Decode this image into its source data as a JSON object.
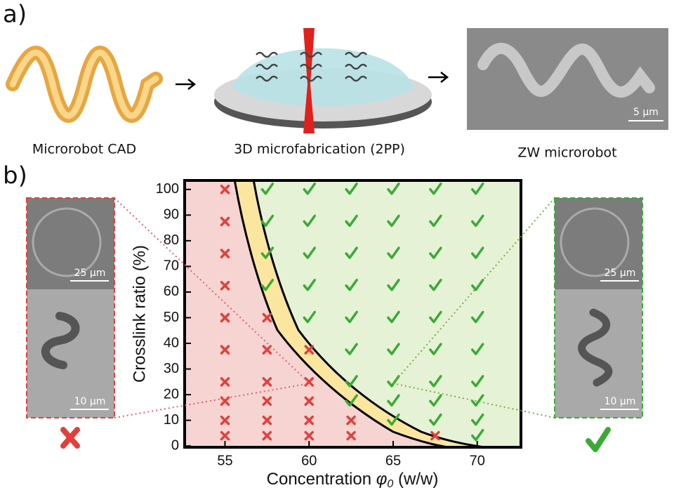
{
  "panel_labels": [
    "a)",
    "b)"
  ],
  "panel_a": {
    "captions": [
      "Microrobot CAD",
      "3D microfabrication (2PP)",
      "ZW microrobot"
    ],
    "scale_bar": "5 µm"
  },
  "insets": {
    "left": {
      "top_scale": "25 µm",
      "bottom_scale": "10 µm"
    },
    "right": {
      "top_scale": "25 µm",
      "bottom_scale": "10 µm"
    }
  },
  "chart_data": {
    "type": "scatter",
    "x_label": {
      "text": "Concentration",
      "symbol": "φ",
      "subscript": "0",
      "unit": "(w/w)"
    },
    "y_label": "Crosslink ratio (%)",
    "xlim": [
      52.6,
      72.6
    ],
    "ylim": [
      -0.5,
      103.5
    ],
    "xticks": [
      55,
      60,
      65,
      70
    ],
    "yticks": [
      0,
      10,
      20,
      30,
      40,
      50,
      60,
      70,
      80,
      90,
      100
    ],
    "series": [
      {
        "marker": "cross",
        "color": "#e0403c",
        "x": [
          55,
          55,
          55,
          55,
          55,
          55,
          55,
          55,
          55,
          55,
          57.5,
          57.5,
          57.5,
          57.5,
          57.5,
          57.5,
          60,
          60,
          60,
          60,
          60,
          62.5,
          62.5,
          67.5
        ],
        "values": [
          100,
          87.5,
          75,
          62.5,
          50,
          37.5,
          25,
          17.5,
          10,
          4,
          50,
          37.5,
          25,
          17.5,
          10,
          4,
          37.5,
          25,
          17.5,
          10,
          4,
          10,
          4,
          4
        ]
      },
      {
        "marker": "check",
        "color": "#3aaa35",
        "x": [
          57.5,
          57.5,
          57.5,
          57.5,
          60,
          60,
          60,
          60,
          60,
          62.5,
          62.5,
          62.5,
          62.5,
          62.5,
          62.5,
          62.5,
          62.5,
          65,
          65,
          65,
          65,
          65,
          65,
          65,
          65,
          65,
          67.5,
          67.5,
          67.5,
          67.5,
          67.5,
          67.5,
          67.5,
          67.5,
          67.5,
          70,
          70,
          70,
          70,
          70,
          70,
          70,
          70,
          70,
          70
        ],
        "values": [
          100,
          87.5,
          75,
          62.5,
          100,
          87.5,
          75,
          62.5,
          50,
          100,
          87.5,
          75,
          62.5,
          50,
          37.5,
          25,
          17.5,
          100,
          87.5,
          75,
          62.5,
          50,
          37.5,
          25,
          17.5,
          10,
          100,
          87.5,
          75,
          62.5,
          50,
          37.5,
          25,
          17.5,
          10,
          100,
          87.5,
          75,
          62.5,
          50,
          37.5,
          25,
          17.5,
          10,
          4
        ]
      }
    ]
  }
}
